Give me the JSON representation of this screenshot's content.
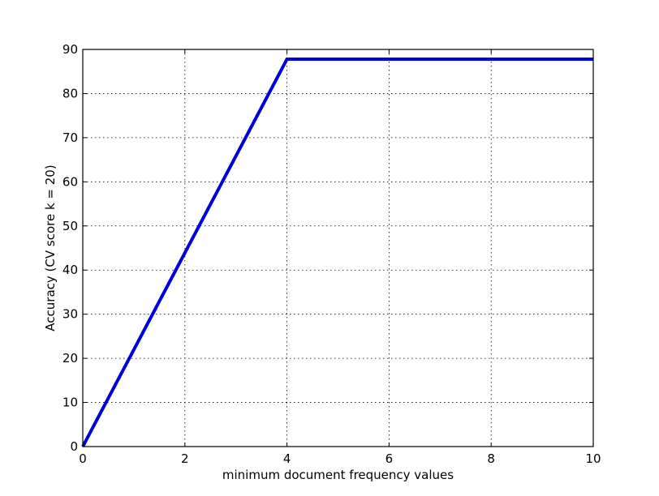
{
  "chart_data": {
    "type": "line",
    "title": "",
    "xlabel": "minimum document frequency values",
    "ylabel": "Accuracy (CV score k = 20)",
    "xlim": [
      0,
      10
    ],
    "ylim": [
      0,
      90
    ],
    "xticks": [
      0,
      2,
      4,
      6,
      8,
      10
    ],
    "yticks": [
      0,
      10,
      20,
      30,
      40,
      50,
      60,
      70,
      80,
      90
    ],
    "xtick_labels": [
      "0",
      "2",
      "4",
      "6",
      "8",
      "10"
    ],
    "ytick_labels": [
      "0",
      "10",
      "20",
      "30",
      "40",
      "50",
      "60",
      "70",
      "80",
      "90"
    ],
    "grid": true,
    "legend": "none",
    "series": [
      {
        "color": "#0000dd",
        "x": [
          0,
          4,
          10
        ],
        "y": [
          0,
          87.8,
          87.8
        ]
      }
    ]
  }
}
